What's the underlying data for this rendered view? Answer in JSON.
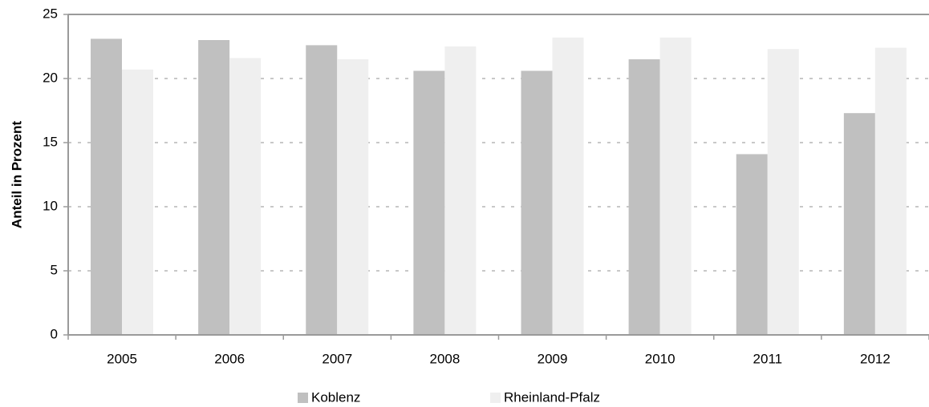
{
  "chart_data": {
    "type": "bar",
    "title": "",
    "xlabel": "",
    "ylabel": "Anteil in Prozent",
    "categories": [
      "2005",
      "2006",
      "2007",
      "2008",
      "2009",
      "2010",
      "2011",
      "2012"
    ],
    "series": [
      {
        "name": "Koblenz",
        "values": [
          23.1,
          23.0,
          22.6,
          20.6,
          20.6,
          21.5,
          14.1,
          17.3
        ]
      },
      {
        "name": "Rheinland-Pfalz",
        "values": [
          20.7,
          21.6,
          21.5,
          22.5,
          23.2,
          23.2,
          22.3,
          22.4
        ]
      }
    ],
    "ylim": [
      0,
      25
    ],
    "yticks": [
      "0",
      "5",
      "10",
      "15",
      "20",
      "25"
    ],
    "grid": true,
    "legend_position": "bottom",
    "colors": {
      "Koblenz": "#c0c0c0",
      "Rheinland-Pfalz": "#efefef",
      "axis": "#9a9a9a",
      "grid": "#c8c8c8"
    }
  }
}
